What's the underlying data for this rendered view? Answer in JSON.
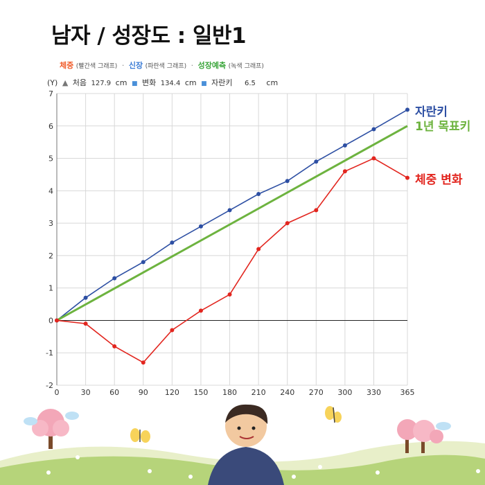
{
  "title": "남자 / 성장도 : 일반1",
  "legend": {
    "weight_word": "체중",
    "weight_sub": "(빨간색 그래프)",
    "height_word": "신장",
    "height_sub": "(파란색 그래프)",
    "predict_word": "성장예측",
    "predict_sub": "(녹색 그래프)",
    "sep": "·"
  },
  "info": {
    "y_unit": "(Y)",
    "start_label": "처음",
    "start_value": "127.9",
    "start_unit": "cm",
    "change_label": "변화",
    "change_value": "134.4",
    "change_unit": "cm",
    "grown_label": "자란키",
    "grown_value": "6.5",
    "grown_unit": "cm"
  },
  "side_labels": {
    "height": "자란키",
    "target": "1년 목표키",
    "weight": "체중 변화"
  },
  "colors": {
    "height": "#2d4fa3",
    "target": "#6db33f",
    "weight": "#e2261f",
    "weight_legend": "#f05a28",
    "height_legend": "#3a7bd5",
    "predict_legend": "#3aa53a"
  },
  "chart_data": {
    "type": "line",
    "x": [
      0,
      30,
      60,
      90,
      120,
      150,
      180,
      210,
      240,
      270,
      300,
      330,
      365
    ],
    "x_ticks": [
      "0",
      "30",
      "60",
      "90",
      "120",
      "150",
      "180",
      "210",
      "240",
      "270",
      "300",
      "330",
      "365"
    ],
    "y_ticks": [
      "-2",
      "-1",
      "0",
      "1",
      "2",
      "3",
      "4",
      "5",
      "6",
      "7"
    ],
    "ylim": [
      -2,
      7
    ],
    "grid": true,
    "series": [
      {
        "name": "자란키",
        "color": "#2d4fa3",
        "markers": true,
        "values": [
          0,
          0.7,
          1.3,
          1.8,
          2.4,
          2.9,
          3.4,
          3.9,
          4.3,
          4.9,
          5.4,
          5.9,
          6.5
        ]
      },
      {
        "name": "1년 목표키",
        "color": "#6db33f",
        "markers": false,
        "x": [
          0,
          365
        ],
        "values": [
          0,
          6
        ]
      },
      {
        "name": "체중 변화",
        "color": "#e2261f",
        "markers": true,
        "values": [
          0,
          -0.1,
          -0.8,
          -1.3,
          -0.3,
          0.3,
          0.8,
          2.2,
          3.0,
          3.4,
          4.6,
          5.0,
          4.4
        ]
      }
    ]
  }
}
